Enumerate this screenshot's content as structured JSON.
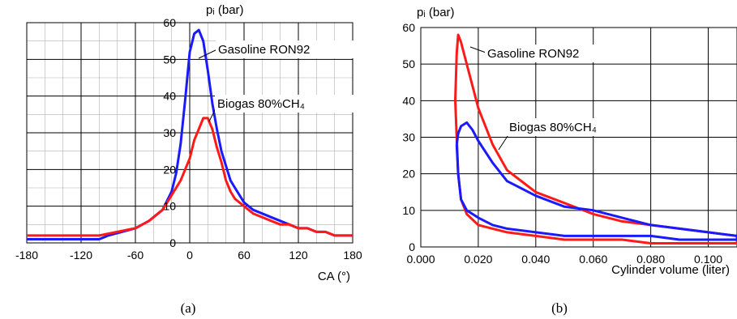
{
  "chart_data": [
    {
      "type": "line",
      "panel": "(a)",
      "ylabel": "pᵢ (bar)",
      "xlabel": "CA (°)",
      "xlim": [
        -180,
        180
      ],
      "ylim": [
        0,
        60
      ],
      "xticks": [
        "-180",
        "-120",
        "-60",
        "0",
        "60",
        "120",
        "180"
      ],
      "yticks": [
        "0",
        "10",
        "20",
        "30",
        "40",
        "50",
        "60"
      ],
      "grid": "major and minor",
      "annotations": [
        "Gasoline RON92",
        "Biogas 80%CH₄"
      ],
      "series": [
        {
          "name": "Gasoline RON92",
          "color": "#1a1aff",
          "x": [
            -180,
            -100,
            -90,
            -75,
            -60,
            -45,
            -30,
            -20,
            -15,
            -10,
            -5,
            0,
            5,
            10,
            15,
            20,
            25,
            30,
            35,
            40,
            45,
            50,
            60,
            70,
            80,
            90,
            100,
            110,
            120,
            130,
            140,
            150,
            160,
            170,
            180
          ],
          "y": [
            1,
            1,
            2,
            3,
            4,
            6,
            9,
            14,
            19,
            27,
            39,
            52,
            57,
            58,
            55,
            47,
            38,
            31,
            25,
            21,
            17,
            15,
            11,
            9,
            8,
            7,
            6,
            5,
            4,
            4,
            3,
            3,
            2,
            2,
            2
          ]
        },
        {
          "name": "Biogas 80%CH₄",
          "color": "#ff1a1a",
          "x": [
            -180,
            -100,
            -80,
            -60,
            -45,
            -30,
            -20,
            -10,
            0,
            5,
            10,
            15,
            20,
            25,
            30,
            35,
            40,
            45,
            50,
            60,
            70,
            80,
            90,
            100,
            110,
            120,
            130,
            140,
            150,
            160,
            170,
            180
          ],
          "y": [
            2,
            2,
            3,
            4,
            6,
            9,
            13,
            17,
            23,
            28,
            31,
            34,
            34,
            31,
            26,
            22,
            17,
            14,
            12,
            10,
            8,
            7,
            6,
            5,
            5,
            4,
            4,
            3,
            3,
            2,
            2,
            2
          ]
        }
      ],
      "caption": "(a)"
    },
    {
      "type": "line",
      "panel": "(b)",
      "ylabel": "pᵢ (bar)",
      "xlabel": "Cylinder volume (liter)",
      "xlim": [
        0,
        0.11
      ],
      "ylim": [
        0,
        60
      ],
      "xticks": [
        "0.000",
        "0.020",
        "0.040",
        "0.060",
        "0.080",
        "0.100"
      ],
      "yticks": [
        "0",
        "10",
        "20",
        "30",
        "40",
        "50",
        "60"
      ],
      "grid": "major",
      "annotations": [
        "Gasoline RON92",
        "Biogas 80%CH₄"
      ],
      "series": [
        {
          "name": "Gasoline RON92",
          "color": "#ff1a1a",
          "x": [
            0.012,
            0.0125,
            0.013,
            0.014,
            0.016,
            0.018,
            0.02,
            0.025,
            0.03,
            0.04,
            0.05,
            0.06,
            0.07,
            0.08,
            0.09,
            0.1,
            0.11,
            0.11,
            0.1,
            0.09,
            0.08,
            0.07,
            0.06,
            0.05,
            0.04,
            0.03,
            0.025,
            0.02,
            0.016,
            0.014,
            0.013,
            0.012
          ],
          "y": [
            40,
            53,
            58,
            56,
            50,
            44,
            38,
            28,
            21,
            15,
            12,
            9,
            7,
            6,
            5,
            4,
            3,
            1,
            1,
            1,
            1,
            2,
            2,
            2,
            3,
            4,
            5,
            6,
            9,
            13,
            20,
            40
          ]
        },
        {
          "name": "Biogas 80%CH₄",
          "color": "#1a1aff",
          "x": [
            0.0125,
            0.013,
            0.014,
            0.016,
            0.018,
            0.02,
            0.025,
            0.03,
            0.04,
            0.05,
            0.06,
            0.07,
            0.08,
            0.09,
            0.1,
            0.11,
            0.11,
            0.1,
            0.09,
            0.08,
            0.07,
            0.06,
            0.05,
            0.04,
            0.03,
            0.025,
            0.02,
            0.016,
            0.014,
            0.013,
            0.0125
          ],
          "y": [
            28,
            31,
            33,
            34,
            32,
            29,
            23,
            18,
            14,
            11,
            10,
            8,
            6,
            5,
            4,
            3,
            2,
            2,
            2,
            3,
            3,
            3,
            3,
            4,
            5,
            6,
            8,
            10,
            13,
            20,
            28
          ]
        }
      ],
      "caption": "(b)"
    }
  ]
}
